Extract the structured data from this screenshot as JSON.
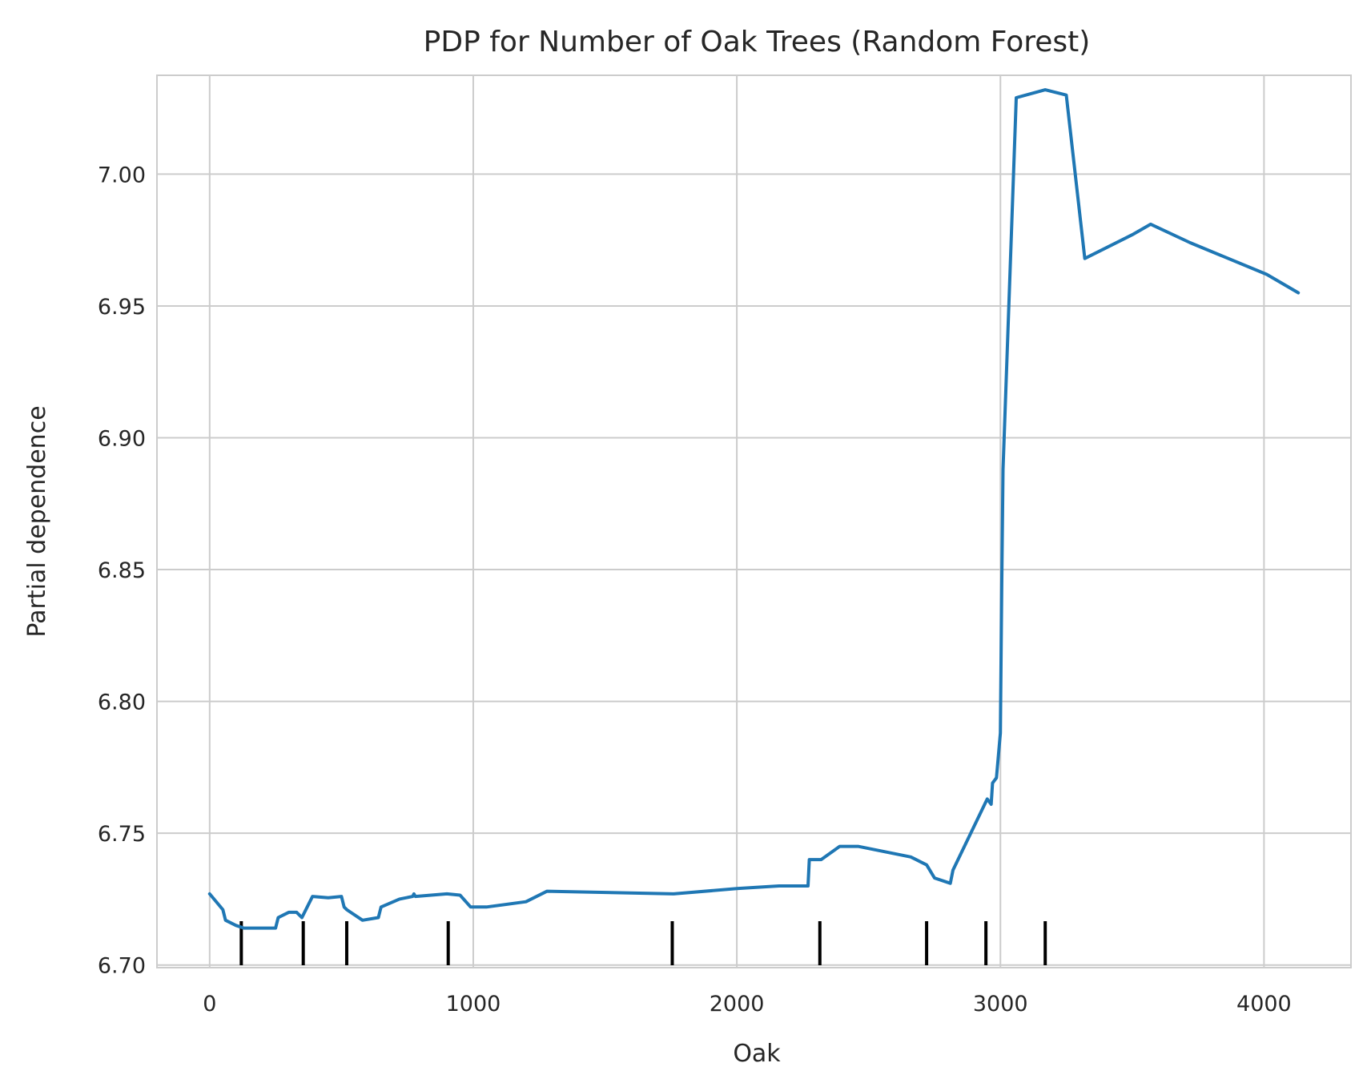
{
  "chart_data": {
    "type": "line",
    "title": "PDP for Number of Oak Trees (Random Forest)",
    "xlabel": "Oak",
    "ylabel": "Partial dependence",
    "xlim": [
      -200,
      4330
    ],
    "ylim": [
      6.699,
      7.0375
    ],
    "xticks": [
      0,
      1000,
      2000,
      3000,
      4000
    ],
    "yticks": [
      6.7,
      6.75,
      6.8,
      6.85,
      6.9,
      6.95,
      7.0
    ],
    "xtick_labels": [
      "0",
      "1000",
      "2000",
      "3000",
      "4000"
    ],
    "ytick_labels": [
      "6.70",
      "6.75",
      "6.80",
      "6.85",
      "6.90",
      "6.95",
      "7.00"
    ],
    "grid": true,
    "series": [
      {
        "color": "#1f77b4",
        "x": [
          0,
          50,
          60,
          100,
          130,
          250,
          260,
          280,
          300,
          330,
          350,
          390,
          450,
          500,
          510,
          520,
          580,
          640,
          650,
          720,
          770,
          775,
          780,
          900,
          950,
          990,
          1050,
          1200,
          1280,
          1760,
          2000,
          2160,
          2270,
          2275,
          2320,
          2390,
          2460,
          2660,
          2700,
          2720,
          2750,
          2810,
          2820,
          2950,
          2965,
          2970,
          2985,
          3000,
          3005,
          3010,
          3060,
          3170,
          3250,
          3320,
          3500,
          3570,
          3720,
          4010,
          4130
        ],
        "y": [
          6.727,
          6.721,
          6.717,
          6.715,
          6.714,
          6.714,
          6.718,
          6.719,
          6.72,
          6.72,
          6.718,
          6.726,
          6.7255,
          6.726,
          6.722,
          6.721,
          6.717,
          6.718,
          6.722,
          6.725,
          6.726,
          6.727,
          6.726,
          6.727,
          6.7265,
          6.722,
          6.722,
          6.724,
          6.728,
          6.727,
          6.729,
          6.73,
          6.73,
          6.74,
          6.74,
          6.745,
          6.745,
          6.741,
          6.739,
          6.738,
          6.733,
          6.731,
          6.736,
          6.763,
          6.761,
          6.769,
          6.771,
          6.788,
          6.844,
          6.888,
          7.029,
          7.032,
          7.03,
          6.968,
          6.977,
          6.981,
          6.974,
          6.962,
          6.955
        ]
      }
    ],
    "rug_x": [
      120,
      355,
      520,
      905,
      1755,
      2315,
      2720,
      2945,
      3170
    ]
  }
}
